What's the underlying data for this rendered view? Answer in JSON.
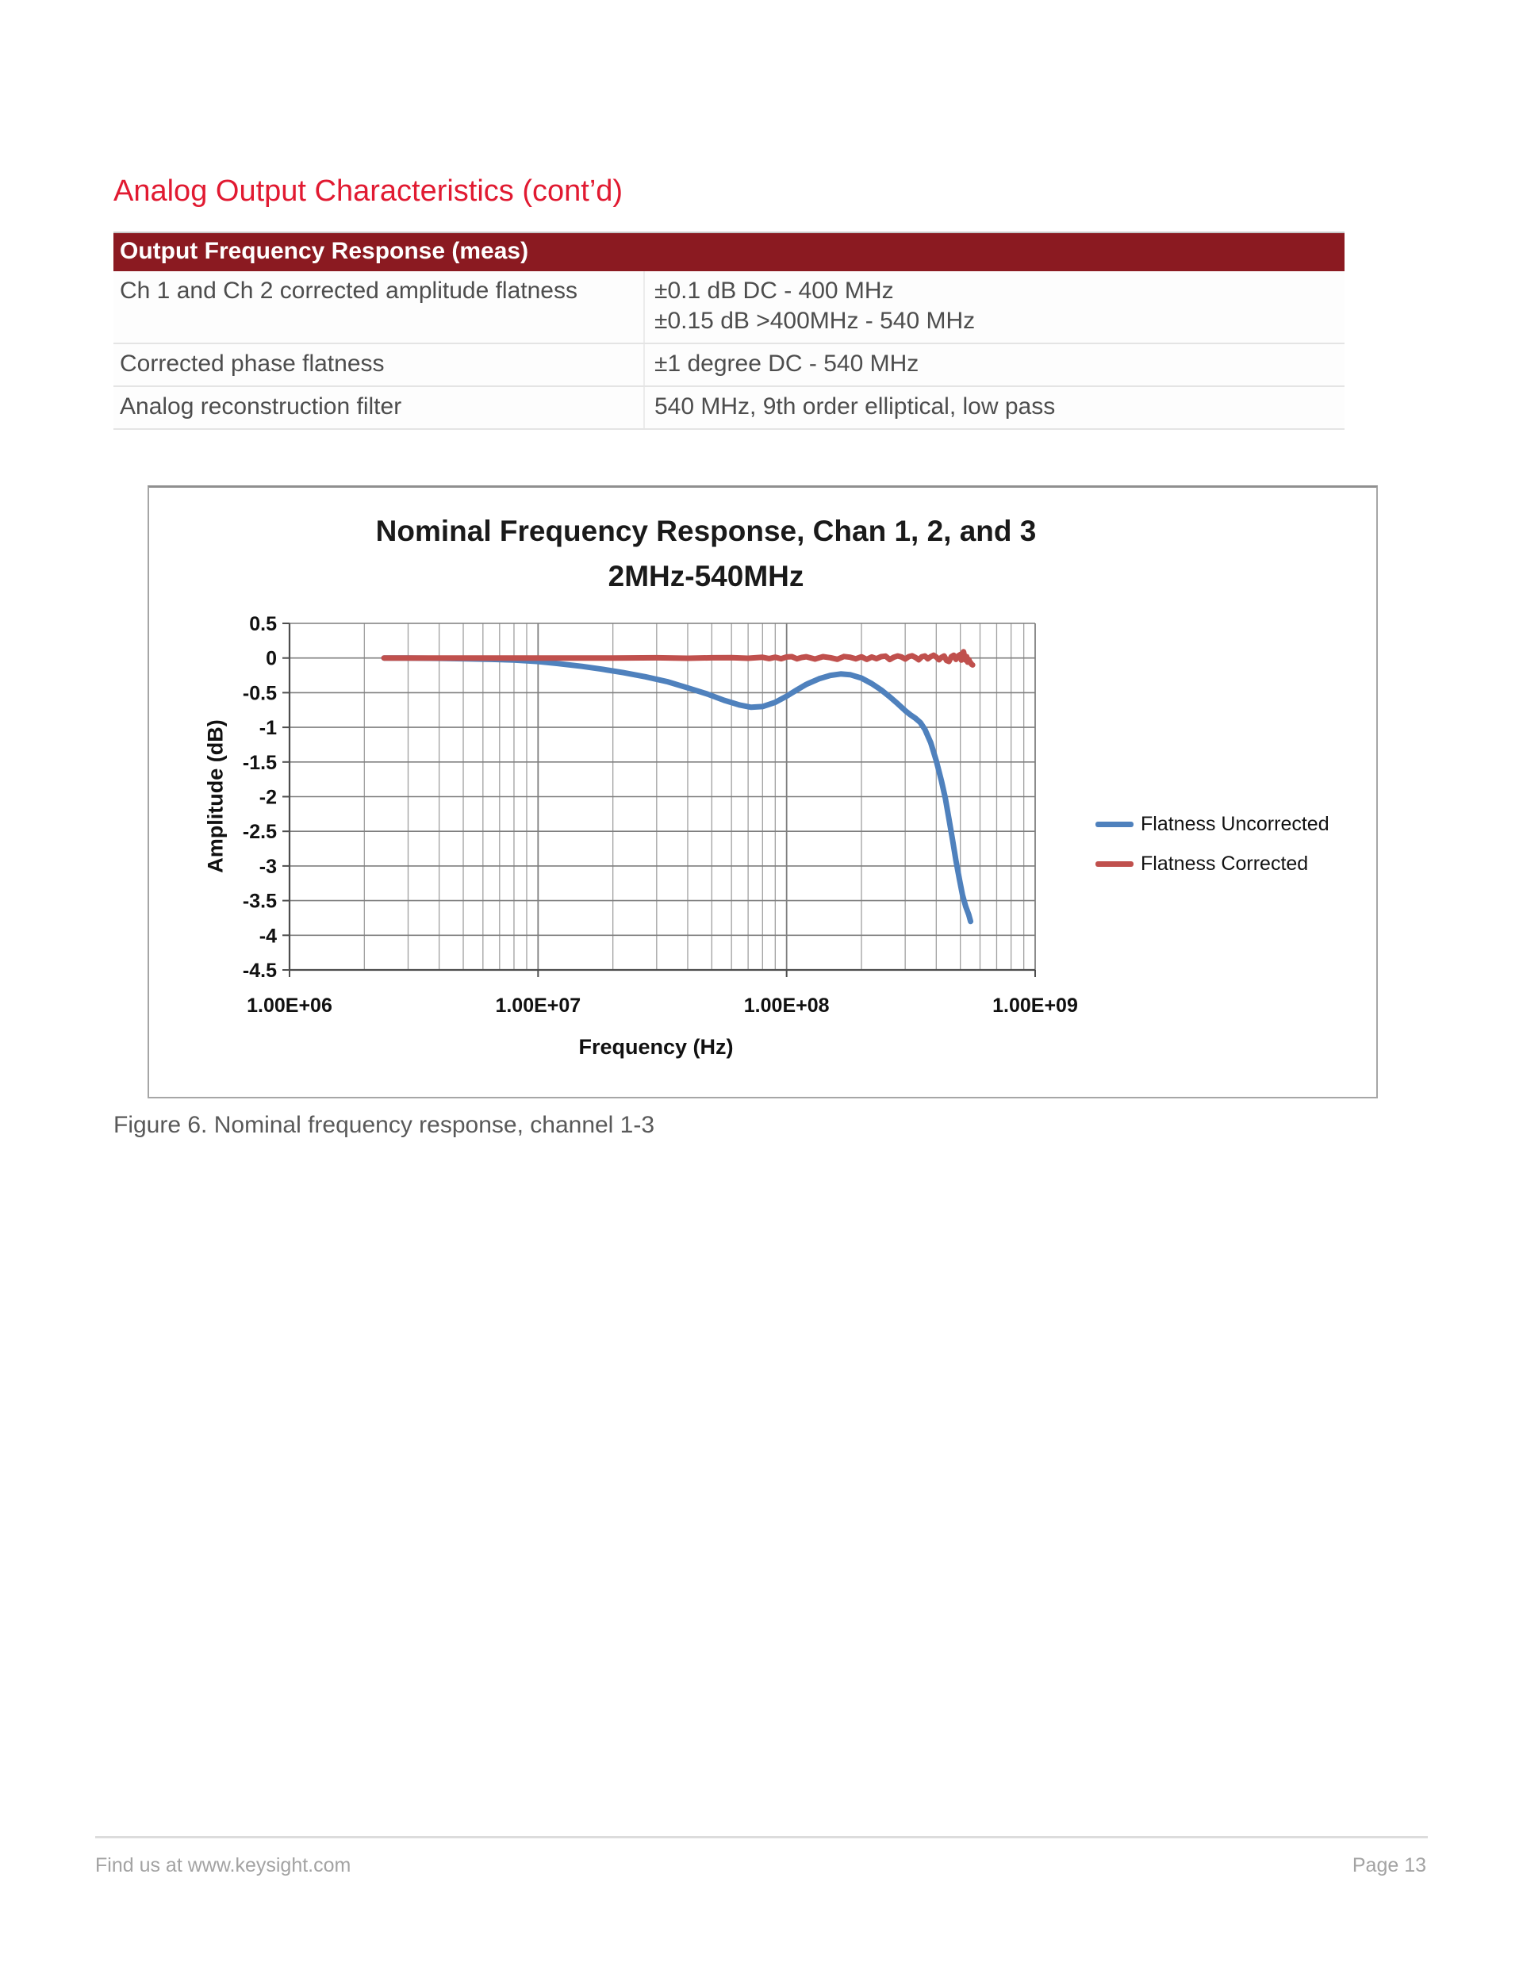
{
  "page": {
    "heading": "Analog Output Characteristics (cont’d)",
    "caption": "Figure 6. Nominal frequency response, channel 1-3",
    "footer": {
      "left": "Find us at www.keysight.com",
      "right": "Page 13"
    }
  },
  "table": {
    "header": "Output Frequency Response (meas)",
    "rows": [
      {
        "label": "Ch 1 and Ch 2 corrected amplitude flatness",
        "values": [
          "±0.1 dB DC - 400 MHz",
          "±0.15 dB >400MHz - 540 MHz"
        ]
      },
      {
        "label": "Corrected phase flatness",
        "values": [
          "±1 degree DC - 540 MHz"
        ]
      },
      {
        "label": "Analog reconstruction filter",
        "values": [
          "540 MHz, 9th order elliptical, low pass"
        ]
      }
    ]
  },
  "colors": {
    "heading_red": "#E11A31",
    "table_header_bg": "#8B1A21",
    "grid_minor": "#A0A0A0",
    "grid_major": "#7F7F7F",
    "axis_line": "#4D4D4D",
    "series_blue": "#4F81BD",
    "series_red": "#C0504D"
  },
  "chart_data": {
    "type": "line",
    "title": "Nominal Frequency Response, Chan 1, 2, and 3",
    "subtitle": "2MHz-540MHz",
    "xlabel": "Frequency (Hz)",
    "ylabel": "Amplitude (dB)",
    "x_scale": "log",
    "xlim": [
      1000000.0,
      1000000000.0
    ],
    "ylim": [
      -4.5,
      0.5
    ],
    "ytick_step": 0.5,
    "yticklabels": [
      "0.5",
      "0",
      "-0.5",
      "-1",
      "-1.5",
      "-2",
      "-2.5",
      "-3",
      "-3.5",
      "-4",
      "-4.5"
    ],
    "xticklabels": [
      "1.00E+06",
      "1.00E+07",
      "1.00E+08",
      "1.00E+09"
    ],
    "grid": "major+minor-log",
    "legend_position": "right",
    "series": [
      {
        "name": "Flatness Uncorrected",
        "color": "#4F81BD",
        "points": [
          [
            2400000.0,
            0
          ],
          [
            3000000.0,
            0
          ],
          [
            4000000.0,
            -0.005
          ],
          [
            5000000.0,
            -0.01
          ],
          [
            6500000.0,
            -0.02
          ],
          [
            8000000.0,
            -0.03
          ],
          [
            10000000.0,
            -0.05
          ],
          [
            12000000.0,
            -0.08
          ],
          [
            15000000.0,
            -0.12
          ],
          [
            18000000.0,
            -0.16
          ],
          [
            22000000.0,
            -0.21
          ],
          [
            27000000.0,
            -0.27
          ],
          [
            33000000.0,
            -0.34
          ],
          [
            40000000.0,
            -0.43
          ],
          [
            48000000.0,
            -0.52
          ],
          [
            56000000.0,
            -0.61
          ],
          [
            65000000.0,
            -0.68
          ],
          [
            72000000.0,
            -0.71
          ],
          [
            80000000.0,
            -0.7
          ],
          [
            90000000.0,
            -0.64
          ],
          [
            100000000.0,
            -0.55
          ],
          [
            110000000.0,
            -0.46
          ],
          [
            120000000.0,
            -0.38
          ],
          [
            135000000.0,
            -0.3
          ],
          [
            150000000.0,
            -0.25
          ],
          [
            165000000.0,
            -0.23
          ],
          [
            180000000.0,
            -0.24
          ],
          [
            200000000.0,
            -0.29
          ],
          [
            220000000.0,
            -0.37
          ],
          [
            240000000.0,
            -0.46
          ],
          [
            260000000.0,
            -0.56
          ],
          [
            280000000.0,
            -0.66
          ],
          [
            300000000.0,
            -0.76
          ],
          [
            315000000.0,
            -0.82
          ],
          [
            330000000.0,
            -0.87
          ],
          [
            345000000.0,
            -0.93
          ],
          [
            360000000.0,
            -1.03
          ],
          [
            380000000.0,
            -1.22
          ],
          [
            400000000.0,
            -1.48
          ],
          [
            420000000.0,
            -1.78
          ],
          [
            435000000.0,
            -2.02
          ],
          [
            450000000.0,
            -2.32
          ],
          [
            465000000.0,
            -2.62
          ],
          [
            480000000.0,
            -2.92
          ],
          [
            495000000.0,
            -3.18
          ],
          [
            510000000.0,
            -3.42
          ],
          [
            525000000.0,
            -3.58
          ],
          [
            540000000.0,
            -3.7
          ],
          [
            550000000.0,
            -3.8
          ]
        ]
      },
      {
        "name": "Flatness Corrected",
        "color": "#C0504D",
        "points": [
          [
            2400000.0,
            0
          ],
          [
            5000000.0,
            0
          ],
          [
            10000000.0,
            0
          ],
          [
            20000000.0,
            0
          ],
          [
            30000000.0,
            0.003
          ],
          [
            40000000.0,
            -0.003
          ],
          [
            50000000.0,
            0.004
          ],
          [
            60000000.0,
            0.006
          ],
          [
            70000000.0,
            -0.004
          ],
          [
            80000000.0,
            0.01
          ],
          [
            85000000.0,
            -0.008
          ],
          [
            90000000.0,
            0.012
          ],
          [
            95000000.0,
            -0.01
          ],
          [
            100000000.0,
            0.015
          ],
          [
            105000000.0,
            0.02
          ],
          [
            110000000.0,
            -0.012
          ],
          [
            115000000.0,
            0.008
          ],
          [
            120000000.0,
            0.018
          ],
          [
            130000000.0,
            -0.015
          ],
          [
            140000000.0,
            0.02
          ],
          [
            150000000.0,
            0.005
          ],
          [
            160000000.0,
            -0.018
          ],
          [
            170000000.0,
            0.022
          ],
          [
            180000000.0,
            0.012
          ],
          [
            190000000.0,
            -0.012
          ],
          [
            200000000.0,
            0.018
          ],
          [
            210000000.0,
            -0.02
          ],
          [
            220000000.0,
            0.015
          ],
          [
            230000000.0,
            -0.01
          ],
          [
            240000000.0,
            0.02
          ],
          [
            250000000.0,
            0.028
          ],
          [
            260000000.0,
            -0.022
          ],
          [
            270000000.0,
            0.012
          ],
          [
            280000000.0,
            0.03
          ],
          [
            290000000.0,
            0.015
          ],
          [
            300000000.0,
            -0.015
          ],
          [
            310000000.0,
            0.02
          ],
          [
            320000000.0,
            0.032
          ],
          [
            330000000.0,
            0.008
          ],
          [
            340000000.0,
            -0.025
          ],
          [
            350000000.0,
            0.018
          ],
          [
            360000000.0,
            0.03
          ],
          [
            370000000.0,
            -0.012
          ],
          [
            380000000.0,
            0.02
          ],
          [
            390000000.0,
            0.04
          ],
          [
            400000000.0,
            0.015
          ],
          [
            410000000.0,
            -0.025
          ],
          [
            420000000.0,
            0.01
          ],
          [
            430000000.0,
            0.03
          ],
          [
            440000000.0,
            -0.035
          ],
          [
            450000000.0,
            -0.05
          ],
          [
            460000000.0,
            0.02
          ],
          [
            470000000.0,
            0.04
          ],
          [
            480000000.0,
            -0.02
          ],
          [
            490000000.0,
            0.03
          ],
          [
            500000000.0,
            0.05
          ],
          [
            505000000.0,
            -0.03
          ],
          [
            510000000.0,
            0.06
          ],
          [
            515000000.0,
            0.09
          ],
          [
            520000000.0,
            0.02
          ],
          [
            525000000.0,
            -0.03
          ],
          [
            530000000.0,
            0.02
          ],
          [
            535000000.0,
            -0.06
          ],
          [
            540000000.0,
            -0.02
          ],
          [
            545000000.0,
            -0.05
          ],
          [
            550000000.0,
            -0.07
          ],
          [
            555000000.0,
            -0.09
          ],
          [
            560000000.0,
            -0.1
          ]
        ]
      }
    ]
  }
}
